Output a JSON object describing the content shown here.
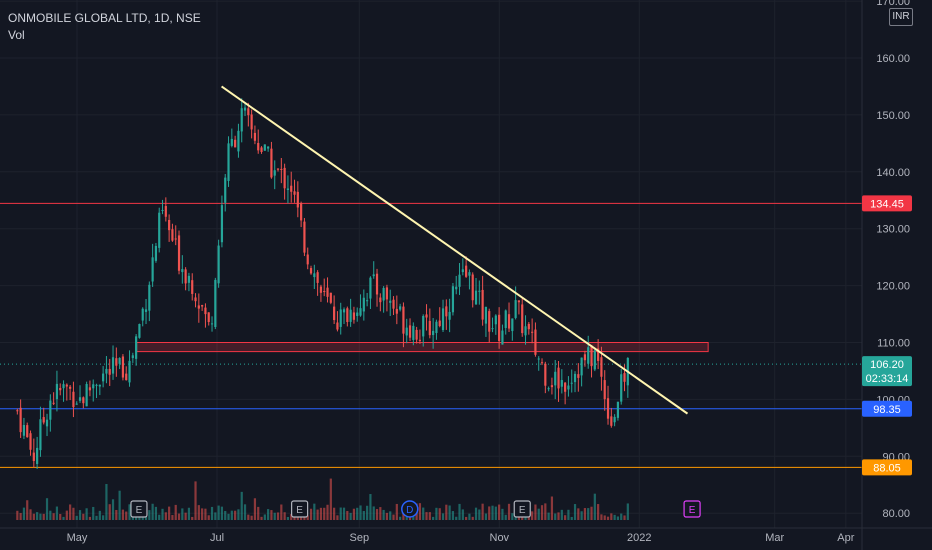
{
  "header": {
    "symbol": "ONMOBILE GLOBAL LTD, 1D, NSE",
    "volume_label": "Vol",
    "currency": "INR"
  },
  "chart_data": {
    "type": "candlestick",
    "title": "ONMOBILE GLOBAL LTD, 1D, NSE",
    "price_range": [
      78,
      171
    ],
    "y_ticks": [
      "170.00",
      "160.00",
      "150.00",
      "140.00",
      "130.00",
      "120.00",
      "110.00",
      "100.00",
      "90.00",
      "80.00"
    ],
    "y_tick_values": [
      170,
      160,
      150,
      140,
      130,
      120,
      110,
      100,
      90,
      80
    ],
    "x_ticks": [
      "May",
      "Jul",
      "Sep",
      "Nov",
      "2022",
      "Mar",
      "Apr"
    ],
    "x_tick_dates": [
      "2021-05-01",
      "2021-07-01",
      "2021-09-01",
      "2021-11-01",
      "2022-01-01",
      "2022-03-01",
      "2022-04-01"
    ],
    "last_price": "106.20",
    "countdown": "02:33:14",
    "close_path": [
      [
        "2021-04-05",
        98
      ],
      [
        "2021-04-12",
        90
      ],
      [
        "2021-04-19",
        100
      ],
      [
        "2021-04-26",
        102
      ],
      [
        "2021-05-03",
        100
      ],
      [
        "2021-05-10",
        104
      ],
      [
        "2021-05-17",
        105
      ],
      [
        "2021-05-24",
        106
      ],
      [
        "2021-05-31",
        118
      ],
      [
        "2021-06-07",
        133
      ],
      [
        "2021-06-14",
        125
      ],
      [
        "2021-06-21",
        120
      ],
      [
        "2021-06-28",
        112
      ],
      [
        "2021-07-05",
        142
      ],
      [
        "2021-07-12",
        150
      ],
      [
        "2021-07-19",
        145
      ],
      [
        "2021-07-26",
        140
      ],
      [
        "2021-08-02",
        138
      ],
      [
        "2021-08-09",
        126
      ],
      [
        "2021-08-16",
        118
      ],
      [
        "2021-08-23",
        114
      ],
      [
        "2021-08-30",
        116
      ],
      [
        "2021-09-06",
        120
      ],
      [
        "2021-09-13",
        118
      ],
      [
        "2021-09-20",
        114
      ],
      [
        "2021-09-27",
        112
      ],
      [
        "2021-10-04",
        113
      ],
      [
        "2021-10-11",
        118
      ],
      [
        "2021-10-18",
        122
      ],
      [
        "2021-10-25",
        115
      ],
      [
        "2021-11-01",
        112
      ],
      [
        "2021-11-08",
        116
      ],
      [
        "2021-11-15",
        110
      ],
      [
        "2021-11-22",
        104
      ],
      [
        "2021-11-29",
        103
      ],
      [
        "2021-12-06",
        106
      ],
      [
        "2021-12-13",
        108
      ],
      [
        "2021-12-20",
        96
      ],
      [
        "2021-12-27",
        106.2
      ]
    ],
    "horizontal_levels": [
      {
        "value": 134.45,
        "label": "134.45",
        "color": "#f23645"
      },
      {
        "value": 98.35,
        "label": "98.35",
        "color": "#2962ff"
      },
      {
        "value": 88.05,
        "label": "88.05",
        "color": "#ff9800"
      }
    ],
    "support_zone": {
      "from_date": "2021-05-27",
      "to_date": "2022-01-31",
      "low": 108.4,
      "high": 110.0,
      "color": "#f23645"
    },
    "trendline": {
      "start": [
        "2021-07-03",
        155.0
      ],
      "end": [
        "2022-01-22",
        97.5
      ],
      "color": "#fff5b0"
    },
    "event_markers": [
      {
        "label": "E",
        "date": "2021-05-28",
        "color": "#b2b5be"
      },
      {
        "label": "E",
        "date": "2021-08-06",
        "color": "#b2b5be"
      },
      {
        "label": "D",
        "date": "2021-09-23",
        "color": "#2962ff"
      },
      {
        "label": "E",
        "date": "2021-11-11",
        "color": "#b2b5be"
      },
      {
        "label": "E",
        "date": "2022-01-24",
        "color": "#e040fb"
      }
    ],
    "colors": {
      "up": "#26a69a",
      "down": "#ef5350",
      "background": "#131722",
      "grid": "#1e222d",
      "axis_text": "#b2b5be",
      "last_price": "#26a69a"
    }
  }
}
